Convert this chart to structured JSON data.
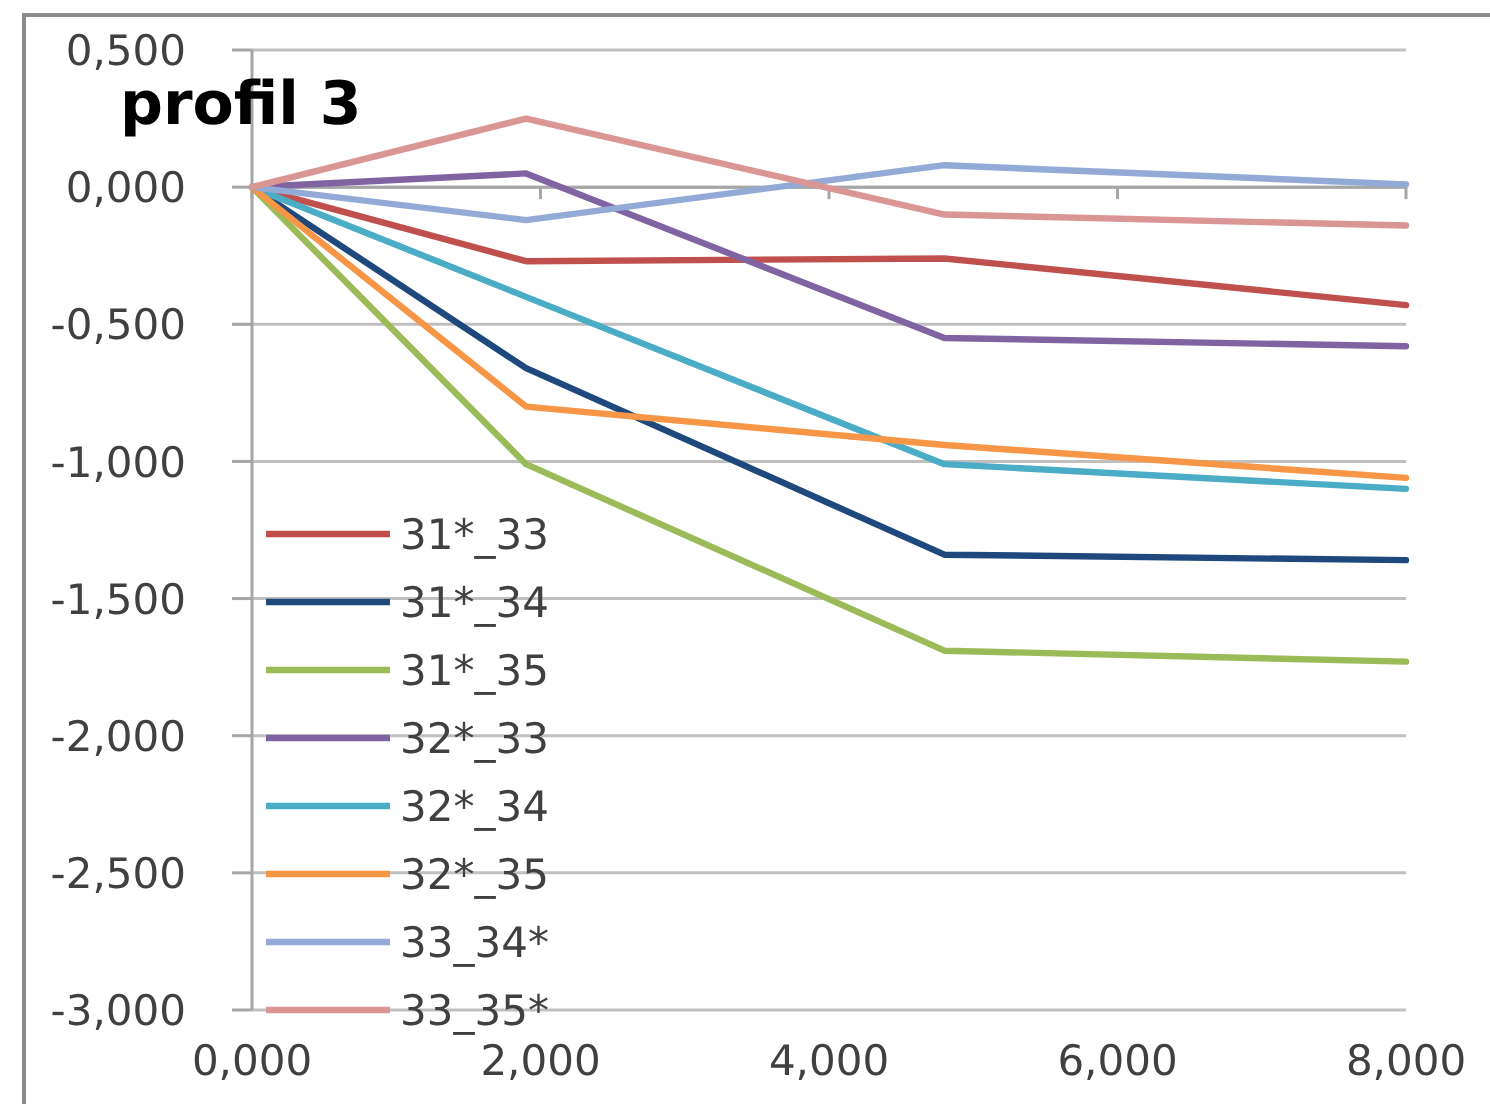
{
  "chart_data": {
    "type": "line",
    "title": "profil 3",
    "x": [
      0,
      1.9,
      4.8,
      8
    ],
    "series": [
      {
        "name": "31*_33",
        "color": "#c0504d",
        "values": [
          0,
          -0.27,
          -0.26,
          -0.43
        ]
      },
      {
        "name": "31*_34",
        "color": "#1f497d",
        "values": [
          0,
          -0.66,
          -1.34,
          -1.36
        ]
      },
      {
        "name": "31*_35",
        "color": "#9bbb59",
        "values": [
          0,
          -1.01,
          -1.69,
          -1.73
        ]
      },
      {
        "name": "32*_33",
        "color": "#8064a2",
        "values": [
          0,
          0.05,
          -0.55,
          -0.58
        ]
      },
      {
        "name": "32*_34",
        "color": "#4bacc6",
        "values": [
          0,
          -0.4,
          -1.01,
          -1.1
        ]
      },
      {
        "name": "32*_35",
        "color": "#f79646",
        "values": [
          0,
          -0.8,
          -0.94,
          -1.06
        ]
      },
      {
        "name": "33_34*",
        "color": "#93a9d6",
        "values": [
          0,
          -0.12,
          0.08,
          0.01
        ]
      },
      {
        "name": "33_35*",
        "color": "#d99694",
        "values": [
          0,
          0.25,
          -0.1,
          -0.14
        ]
      }
    ],
    "xlim": [
      0,
      8
    ],
    "xticks": [
      {
        "value": 0,
        "label": "0,000"
      },
      {
        "value": 2,
        "label": "2,000"
      },
      {
        "value": 4,
        "label": "4,000"
      },
      {
        "value": 6,
        "label": "6,000"
      },
      {
        "value": 8,
        "label": "8,000"
      }
    ],
    "ylim": [
      -3,
      0.5
    ],
    "yticks": [
      {
        "value": -3,
        "label": "-3,000"
      },
      {
        "value": -2.5,
        "label": "-2,500"
      },
      {
        "value": -2,
        "label": "-2,000"
      },
      {
        "value": -1.5,
        "label": "-1,500"
      },
      {
        "value": -1,
        "label": "-1,000"
      },
      {
        "value": -0.5,
        "label": "-0,500"
      },
      {
        "value": 0,
        "label": "0,000"
      },
      {
        "value": 0.5,
        "label": "0,500"
      }
    ],
    "grid": "y",
    "legend": "bottom left",
    "marker": "none",
    "line_style": "solid"
  }
}
